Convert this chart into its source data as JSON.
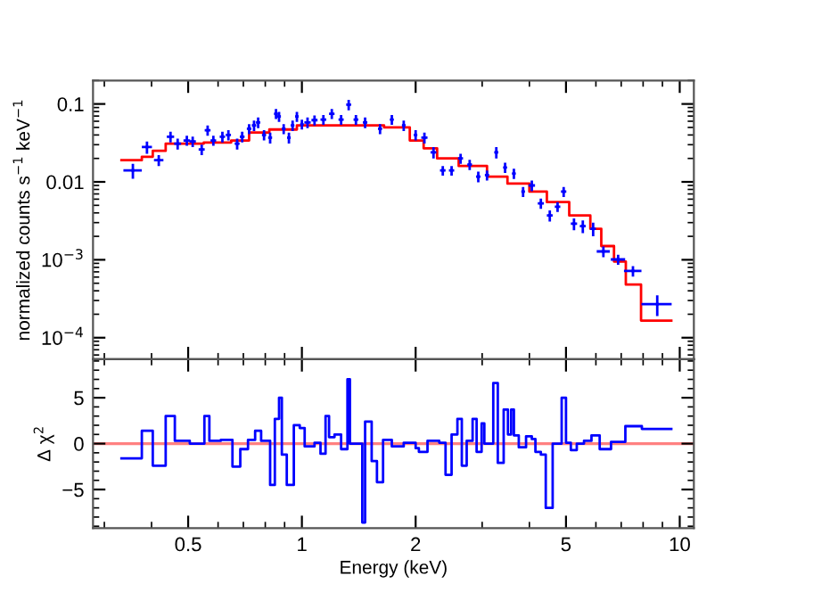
{
  "chart_data": [
    {
      "type": "scatter",
      "ylabel": "normalized counts s$^{−1}$ keV$^{−1}$",
      "log": "xy",
      "xlim": [
        0.28,
        10.9
      ],
      "ylim": [
        5.3e-05,
        0.2
      ],
      "xticks": [
        0.5,
        1,
        2,
        5,
        10
      ],
      "yticks": [
        {
          "value": 0.0001,
          "label": "10$^{−4}$"
        },
        {
          "value": 0.001,
          "label": "10$^{−3}$"
        },
        0.01,
        0.1
      ],
      "tick_labels": "y",
      "marker": "none",
      "series": [
        {
          "color": "#0000ff",
          "x": [
            0.357,
            0.389,
            0.418,
            0.449,
            0.469,
            0.496,
            0.514,
            0.543,
            0.563,
            0.583,
            0.616,
            0.639,
            0.674,
            0.695,
            0.725,
            0.747,
            0.766,
            0.794,
            0.824,
            0.854,
            0.87,
            0.895,
            0.924,
            0.945,
            0.97,
            1.0,
            1.035,
            1.08,
            1.14,
            1.2,
            1.27,
            1.33,
            1.39,
            1.47,
            1.61,
            1.73,
            1.86,
            2.0,
            2.11,
            2.23,
            2.36,
            2.49,
            2.63,
            2.78,
            2.93,
            3.09,
            3.27,
            3.45,
            3.64,
            3.85,
            4.06,
            4.29,
            4.53,
            4.75,
            4.93,
            5.25,
            5.54,
            5.9,
            6.28,
            6.87,
            7.52,
            8.72
          ],
          "values": [
            0.014,
            0.028,
            0.019,
            0.038,
            0.031,
            0.034,
            0.033,
            0.026,
            0.046,
            0.034,
            0.038,
            0.04,
            0.031,
            0.038,
            0.048,
            0.053,
            0.058,
            0.04,
            0.037,
            0.075,
            0.069,
            0.048,
            0.037,
            0.053,
            0.069,
            0.055,
            0.058,
            0.062,
            0.063,
            0.075,
            0.063,
            0.098,
            0.063,
            0.058,
            0.048,
            0.063,
            0.053,
            0.04,
            0.037,
            0.024,
            0.014,
            0.014,
            0.02,
            0.0167,
            0.0117,
            0.0122,
            0.024,
            0.0153,
            0.0128,
            0.0075,
            0.009,
            0.0053,
            0.0037,
            0.0048,
            0.0075,
            0.0029,
            0.0027,
            0.0025,
            0.00128,
            0.00101,
            0.00072,
            0.00027
          ],
          "errors": [
            0.003,
            0.005,
            0.003,
            0.006,
            0.005,
            0.005,
            0.005,
            0.004,
            0.007,
            0.005,
            0.006,
            0.006,
            0.005,
            0.006,
            0.007,
            0.008,
            0.009,
            0.006,
            0.006,
            0.011,
            0.01,
            0.007,
            0.006,
            0.008,
            0.01,
            0.008,
            0.009,
            0.009,
            0.009,
            0.011,
            0.009,
            0.015,
            0.009,
            0.009,
            0.007,
            0.009,
            0.008,
            0.006,
            0.006,
            0.004,
            0.002,
            0.002,
            0.003,
            0.0025,
            0.0018,
            0.0018,
            0.004,
            0.0023,
            0.0019,
            0.0011,
            0.0014,
            0.0008,
            0.0006,
            0.0007,
            0.0011,
            0.0005,
            0.0005,
            0.0005,
            0.0002,
            0.00015,
            0.00011,
            8e-05
          ],
          "xerrors": [
            0.02,
            0.012,
            0.012,
            0.01,
            0.01,
            0.01,
            0.01,
            0.01,
            0.01,
            0.01,
            0.01,
            0.01,
            0.01,
            0.01,
            0.01,
            0.01,
            0.01,
            0.01,
            0.01,
            0.01,
            0.01,
            0.01,
            0.01,
            0.01,
            0.01,
            0.01,
            0.02,
            0.02,
            0.02,
            0.02,
            0.02,
            0.02,
            0.02,
            0.02,
            0.02,
            0.02,
            0.02,
            0.02,
            0.04,
            0.04,
            0.04,
            0.04,
            0.04,
            0.04,
            0.04,
            0.04,
            0.04,
            0.04,
            0.04,
            0.04,
            0.08,
            0.08,
            0.08,
            0.08,
            0.08,
            0.1,
            0.1,
            0.1,
            0.25,
            0.3,
            0.4,
            0.8
          ]
        },
        {
          "type": "step",
          "color": "#ff0000",
          "x": [
            0.333,
            0.377,
            0.403,
            0.436,
            0.55,
            0.65,
            0.725,
            0.82,
            0.97,
            1.39,
            1.65,
            1.93,
            2.1,
            2.28,
            2.6,
            3.09,
            3.5,
            4.0,
            4.45,
            5.1,
            5.8,
            6.2,
            6.7,
            7.2,
            7.9,
            9.5
          ],
          "values": [
            0.019,
            0.021,
            0.025,
            0.031,
            0.032,
            0.034,
            0.043,
            0.047,
            0.053,
            0.053,
            0.05,
            0.034,
            0.027,
            0.02,
            0.016,
            0.0117,
            0.0095,
            0.0075,
            0.0055,
            0.0037,
            0.0025,
            0.0015,
            0.00095,
            0.00048,
            0.000166,
            0.000166
          ]
        }
      ]
    },
    {
      "type": "step",
      "xlabel": "Energy (keV)",
      "ylabel": "Δ χ$^{2}$",
      "log": "x",
      "xlim": [
        0.28,
        10.9
      ],
      "ylim": [
        -9.2,
        9.2
      ],
      "xticks": [
        0.5,
        1,
        2,
        5,
        10
      ],
      "yticks": [
        {
          "value": -5,
          "label": "−5"
        },
        0,
        5
      ],
      "ref_lines": [
        {
          "axis": "y",
          "value": 0,
          "color": "#ff8080"
        }
      ],
      "series": [
        {
          "color": "#0000ff",
          "x": [
            0.333,
            0.377,
            0.403,
            0.436,
            0.461,
            0.505,
            0.552,
            0.569,
            0.61,
            0.655,
            0.687,
            0.72,
            0.752,
            0.78,
            0.824,
            0.848,
            0.87,
            0.885,
            0.912,
            0.952,
            0.987,
            1.017,
            1.08,
            1.12,
            1.155,
            1.18,
            1.22,
            1.27,
            1.32,
            1.34,
            1.445,
            1.47,
            1.53,
            1.58,
            1.64,
            1.73,
            1.86,
            2.0,
            2.04,
            2.15,
            2.31,
            2.4,
            2.49,
            2.58,
            2.65,
            2.73,
            2.83,
            2.9,
            2.99,
            3.04,
            3.21,
            3.3,
            3.42,
            3.51,
            3.58,
            3.64,
            3.75,
            3.92,
            4.06,
            4.15,
            4.29,
            4.42,
            4.61,
            4.87,
            5.0,
            5.15,
            5.34,
            5.58,
            5.84,
            6.14,
            6.58,
            7.18,
            7.94,
            9.5
          ],
          "values": [
            -1.6,
            1.4,
            -2.4,
            3.0,
            0.3,
            0,
            3.0,
            0.3,
            0.4,
            -2.5,
            -0.6,
            0.4,
            1.4,
            0.3,
            -4.5,
            2.7,
            5.0,
            -1.2,
            -4.5,
            2.0,
            1.7,
            -0.3,
            0.1,
            -1.1,
            3.0,
            0.7,
            1.0,
            -0.6,
            7.0,
            0,
            -8.6,
            2.4,
            -1.9,
            -4.2,
            0.4,
            -0.3,
            0.1,
            -0.5,
            -0.9,
            0.3,
            0.1,
            -3.4,
            1.0,
            2.7,
            -2.4,
            0.3,
            2.7,
            -0.9,
            2.2,
            0,
            6.6,
            -2.1,
            3.7,
            1.0,
            3.7,
            0.9,
            -0.4,
            0.8,
            0.5,
            -0.9,
            -1.2,
            -7.0,
            0,
            5.0,
            0.1,
            -0.7,
            0,
            0.3,
            0.9,
            -0.6,
            0.2,
            1.9,
            1.6,
            1.6
          ]
        }
      ]
    }
  ]
}
